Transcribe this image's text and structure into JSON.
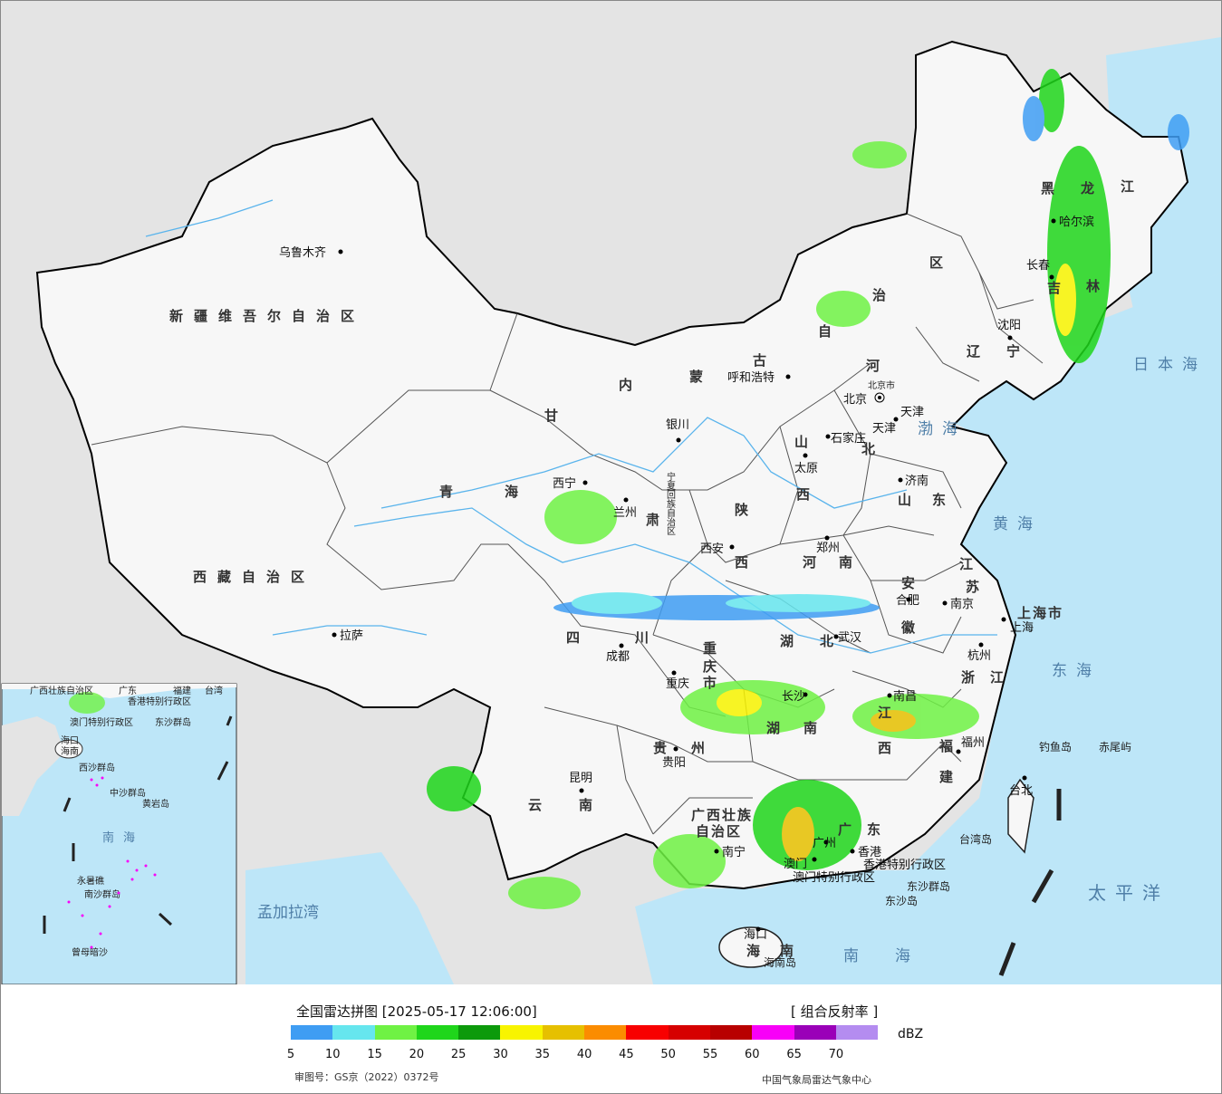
{
  "map": {
    "province_labels": [
      "新疆维吾尔自治区",
      "西藏自治区",
      "青",
      "海",
      "甘",
      "肃",
      "内",
      "蒙",
      "古",
      "自",
      "治",
      "区",
      "黑",
      "龙",
      "江",
      "吉",
      "林",
      "辽",
      "宁",
      "河",
      "北",
      "山",
      "西",
      "山",
      "东",
      "陕",
      "西",
      "河",
      "南",
      "四",
      "川",
      "重",
      "庆",
      "市",
      "湖",
      "北",
      "湖",
      "南",
      "安",
      "徽",
      "江",
      "苏",
      "浙",
      "江",
      "江",
      "西",
      "福",
      "建",
      "贵",
      "州",
      "云",
      "南",
      "广",
      "东",
      "海",
      "南",
      "上海市",
      "广西壮族",
      "自治区",
      "宁夏回族自治区",
      "天津",
      "北京市"
    ],
    "cities": [
      "乌鲁木齐",
      "拉萨",
      "西宁",
      "兰州",
      "银川",
      "呼和浩特",
      "北京",
      "天津",
      "石家庄",
      "太原",
      "济南",
      "郑州",
      "西安",
      "成都",
      "重庆",
      "武汉",
      "合肥",
      "南京",
      "上海",
      "杭州",
      "南昌",
      "长沙",
      "贵阳",
      "昆明",
      "南宁",
      "广州",
      "福州",
      "台北",
      "哈尔滨",
      "长春",
      "沈阳",
      "海口",
      "香港",
      "澳门"
    ],
    "seas": [
      "日本海",
      "渤海",
      "黄海",
      "东海",
      "太平洋",
      "南海",
      "孟加拉湾"
    ],
    "islands": [
      "钓鱼岛",
      "赤尾屿",
      "台湾岛",
      "东沙群岛",
      "东沙岛",
      "海南岛",
      "香港特别行政区",
      "澳门特别行政区"
    ],
    "inset_labels": [
      "广西壮族自治区",
      "广东",
      "福建",
      "台湾",
      "香港特别行政区",
      "澳门特别行政区",
      "东沙群岛",
      "海口",
      "海南",
      "西沙群岛",
      "中沙群岛",
      "黄岩岛",
      "南海",
      "永暑礁",
      "南沙群岛",
      "曾母暗沙"
    ]
  },
  "legend": {
    "title": "全国雷达拼图 [2025-05-17 12:06:00]",
    "product": "[ 组合反射率 ]",
    "unit": "dBZ",
    "ticks": [
      "5",
      "10",
      "15",
      "20",
      "25",
      "30",
      "35",
      "40",
      "45",
      "50",
      "55",
      "60",
      "65",
      "70"
    ],
    "colors": [
      "#3f9df3",
      "#66e6ee",
      "#6ff244",
      "#1fd61b",
      "#0c9a0b",
      "#f8f400",
      "#e6c000",
      "#fb8c00",
      "#f80000",
      "#d60000",
      "#b80000",
      "#f800f8",
      "#9a00b8",
      "#b48cf0"
    ],
    "approval": "审图号：GS京（2022）0372号",
    "credit": "中国气象局雷达气象中心"
  }
}
